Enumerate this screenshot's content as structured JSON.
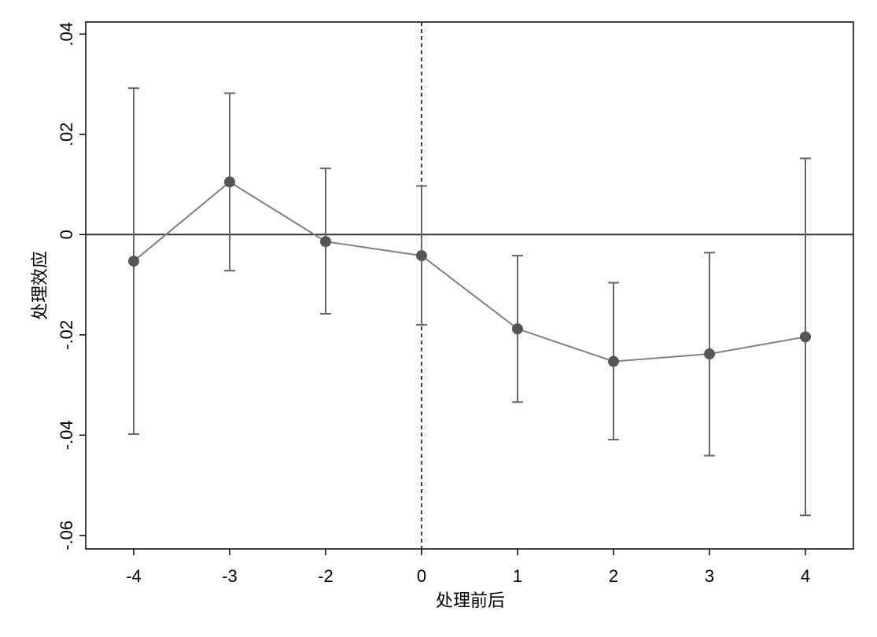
{
  "chart_data": {
    "type": "errorbar-line",
    "x_label": "处理前后",
    "y_label": "处理效应",
    "categories": [
      "-4",
      "-3",
      "-2",
      "0",
      "1",
      "2",
      "3",
      "4"
    ],
    "series": [
      {
        "color": "#7f7f7f",
        "marker_color": "#555555",
        "ci_color": "#666666",
        "values": [
          -0.0053,
          0.0105,
          -0.0014,
          -0.0042,
          -0.0188,
          -0.0253,
          -0.0238,
          -0.0204
        ],
        "lower": [
          -0.0398,
          -0.0072,
          -0.0158,
          -0.018,
          -0.0334,
          -0.0409,
          -0.0441,
          -0.056
        ],
        "upper": [
          0.0292,
          0.0282,
          0.0132,
          0.0097,
          -0.0042,
          -0.0096,
          -0.0036,
          0.0152
        ]
      }
    ],
    "ylim": [
      -0.0627,
      0.0424
    ],
    "yticks": [
      {
        "value": -0.06,
        "label": "-.06"
      },
      {
        "value": -0.04,
        "label": "-.04"
      },
      {
        "value": -0.02,
        "label": "-.02"
      },
      0,
      {
        "value": 0.02,
        "label": ".02"
      },
      {
        "value": 0.04,
        "label": ".04"
      }
    ],
    "hline": 0,
    "vline": "0"
  }
}
